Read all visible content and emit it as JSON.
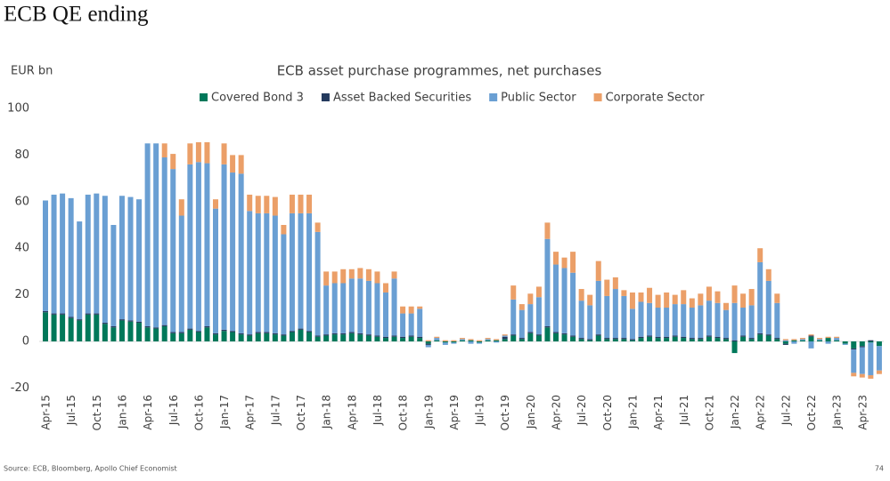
{
  "header": {
    "title": "ECB QE ending"
  },
  "footer": {
    "source": "Source: ECB, Bloomberg, Apollo Chief Economist",
    "page": "74"
  },
  "chart_data": {
    "type": "bar",
    "stacked": true,
    "title": "ECB asset purchase programmes, net purchases",
    "y_label": "EUR bn",
    "ylim": [
      -20,
      100
    ],
    "yticks": [
      -20,
      0,
      20,
      40,
      60,
      80,
      100
    ],
    "grid": false,
    "legend": "top",
    "categories": [
      "Apr-15",
      null,
      null,
      "Jul-15",
      null,
      null,
      "Oct-15",
      null,
      null,
      "Jan-16",
      null,
      null,
      "Apr-16",
      null,
      null,
      "Jul-16",
      null,
      null,
      "Oct-16",
      null,
      null,
      "Jan-17",
      null,
      null,
      "Apr-17",
      null,
      null,
      "Jul-17",
      null,
      null,
      "Oct-17",
      null,
      null,
      "Jan-18",
      null,
      null,
      "Apr-18",
      null,
      null,
      "Jul-18",
      null,
      null,
      "Oct-18",
      null,
      null,
      "Jan-19",
      null,
      null,
      "Apr-19",
      null,
      null,
      "Jul-19",
      null,
      null,
      "Oct-19",
      null,
      null,
      "Jan-20",
      null,
      null,
      "Apr-20",
      null,
      null,
      "Jul-20",
      null,
      null,
      "Oct-20",
      null,
      null,
      "Jan-21",
      null,
      null,
      "Apr-21",
      null,
      null,
      "Jul-21",
      null,
      null,
      "Oct-21",
      null,
      null,
      "Jan-22",
      null,
      null,
      "Apr-22",
      null,
      null,
      "Jul-22",
      null,
      null,
      "Oct-22",
      null,
      null,
      "Jan-23",
      null,
      null,
      "Apr-23",
      null,
      null
    ],
    "series": [
      {
        "name": "Covered Bond 3",
        "color": "#00785a",
        "values": [
          12.5,
          11.5,
          11.5,
          10,
          9,
          11.5,
          11.5,
          7.5,
          6,
          9,
          8.5,
          8,
          6,
          5.5,
          6.5,
          3.5,
          3.5,
          5,
          4,
          6,
          3,
          4.5,
          4,
          3,
          2.5,
          3.5,
          3.5,
          3,
          2.5,
          4,
          5,
          4,
          2,
          2.5,
          3,
          3,
          3.5,
          3,
          2.5,
          2,
          1.5,
          2,
          1.5,
          2,
          1.5,
          -1,
          0.5,
          -0.5,
          -0.5,
          0.5,
          0.5,
          -0.5,
          0.5,
          0.5,
          1,
          2.5,
          1,
          3.5,
          2.5,
          6,
          3.5,
          3,
          2,
          1,
          0.5,
          2.5,
          1,
          1,
          1,
          0.5,
          1.5,
          2,
          1.5,
          1.5,
          2,
          1.5,
          1,
          1,
          2,
          1.5,
          1,
          -5,
          2,
          1,
          3,
          2.5,
          1,
          -1,
          0.5,
          0.5,
          2,
          0.5,
          1.5,
          0.5,
          -1,
          -3,
          -2,
          -0.5,
          -2
        ]
      },
      {
        "name": "Asset Backed Securities",
        "color": "#243a5e",
        "values": [
          0.5,
          0.5,
          0.5,
          0.5,
          0.5,
          0.5,
          0.5,
          0.5,
          0.5,
          0.5,
          0.5,
          0.5,
          0.5,
          0.5,
          0.5,
          0.5,
          0.5,
          0.5,
          0.5,
          0.5,
          0.5,
          0.5,
          0.5,
          0.5,
          0.5,
          0.5,
          0.5,
          0.5,
          0.5,
          0.5,
          0.5,
          0.5,
          0.5,
          0.5,
          0.5,
          0.5,
          0.5,
          0.5,
          0.5,
          0.5,
          0.5,
          0.5,
          0.5,
          0.5,
          0.5,
          -0.5,
          0,
          0,
          0,
          0,
          0,
          0,
          0,
          0,
          1,
          0.5,
          0.5,
          0.5,
          0.5,
          0.5,
          0.5,
          0.5,
          0.5,
          0.5,
          0.5,
          0.5,
          0.5,
          0.5,
          0.5,
          0.5,
          0.5,
          0.5,
          0.5,
          0.5,
          0.5,
          0.5,
          0.5,
          0.5,
          0.5,
          0.5,
          0.5,
          0.5,
          0.5,
          0.5,
          0.5,
          0.5,
          0.5,
          -0.5,
          0,
          0,
          0.5,
          0,
          0,
          0,
          0,
          -0.5,
          -0.5,
          0.5,
          0
        ]
      },
      {
        "name": "Public Sector",
        "color": "#6a9fd3",
        "values": [
          47.5,
          51,
          51.5,
          51,
          42,
          51,
          51.5,
          54.5,
          43.5,
          53,
          53,
          52.5,
          78.5,
          79,
          72,
          70,
          50,
          70.5,
          72.5,
          70,
          53.5,
          71,
          68,
          68.5,
          53,
          51,
          51,
          50.5,
          43,
          50.5,
          49.5,
          50.5,
          44.5,
          21,
          21.5,
          21.5,
          23,
          23.5,
          23,
          22.5,
          19,
          24.5,
          10,
          9.5,
          12,
          -1,
          1,
          -1,
          -0.5,
          0.5,
          -1,
          -0.5,
          0.5,
          -0.5,
          0.5,
          15,
          12,
          12,
          16,
          37.5,
          29,
          28,
          27,
          16,
          14.5,
          23,
          18,
          21,
          18,
          13,
          15,
          14,
          12.5,
          12.5,
          13.5,
          14,
          13,
          14,
          15,
          14.5,
          12,
          16,
          12,
          14,
          30.5,
          23,
          15,
          0.5,
          -1,
          0.5,
          -3,
          0.5,
          -1,
          1,
          -0.5,
          -10,
          -11.5,
          -14,
          -10.5
        ]
      },
      {
        "name": "Corporate Sector",
        "color": "#eb9f68",
        "values": [
          0,
          0,
          0,
          0,
          0,
          0,
          0,
          0,
          0,
          0,
          0,
          0,
          0,
          0,
          6,
          6.5,
          7,
          9,
          8.5,
          9,
          4,
          9,
          7.5,
          8,
          7,
          7.5,
          7.5,
          8,
          4,
          8,
          8,
          8,
          4,
          6,
          5,
          6,
          4,
          4.5,
          5,
          5,
          4,
          3,
          3,
          3,
          1,
          0.5,
          0.5,
          0.5,
          0.5,
          0.5,
          0.5,
          0.5,
          0.5,
          0.5,
          0.5,
          6,
          2.5,
          4.5,
          4.5,
          7,
          5.5,
          4.5,
          9,
          5,
          4.5,
          8.5,
          7,
          5,
          2.5,
          7,
          4,
          6.5,
          5.5,
          6.5,
          4,
          6,
          4,
          5,
          6,
          5,
          3,
          7.5,
          6,
          7,
          6,
          5,
          4,
          0.5,
          0.5,
          0.5,
          0.5,
          0.5,
          0.5,
          0.5,
          0,
          -1.5,
          -1.5,
          -1.5,
          -1.5
        ]
      }
    ]
  }
}
